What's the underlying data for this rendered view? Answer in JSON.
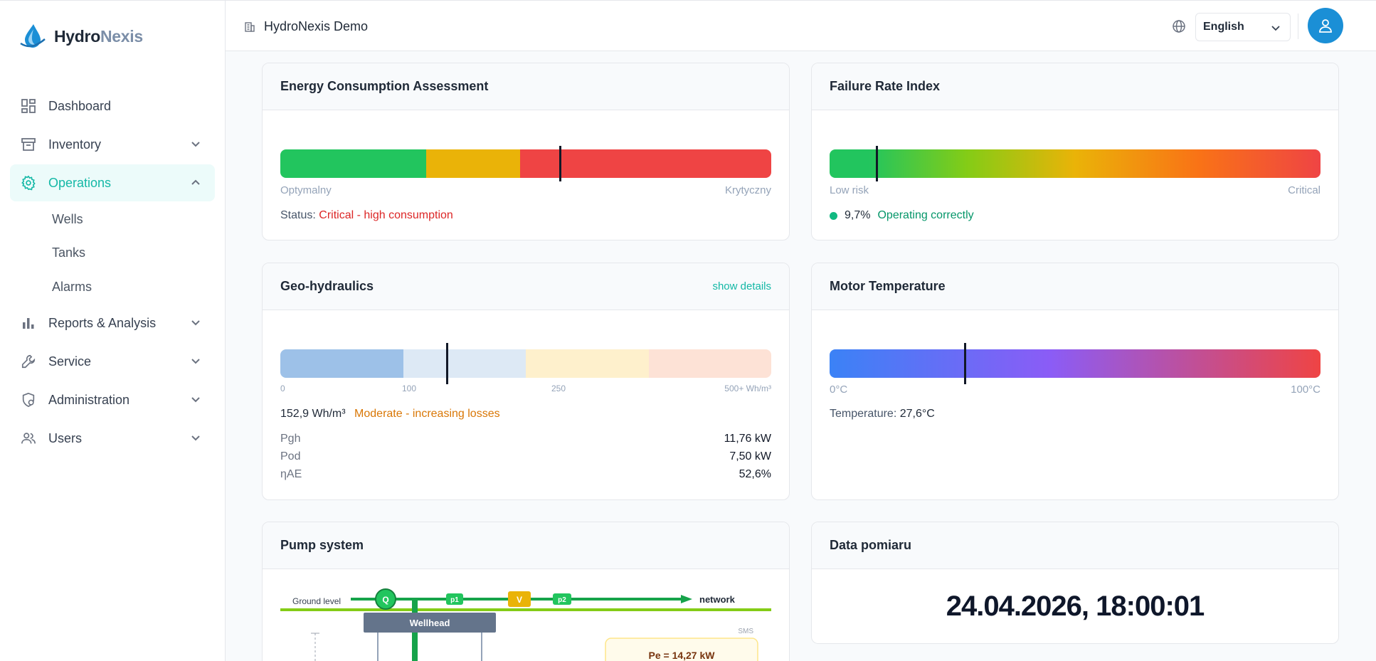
{
  "app": {
    "logo_part1": "Hydro",
    "logo_part2": "Nexis",
    "tenant": "HydroNexis Demo",
    "language": "English"
  },
  "sidebar": {
    "items": [
      {
        "label": "Dashboard",
        "icon": "dashboard-icon"
      },
      {
        "label": "Inventory",
        "icon": "archive-icon"
      },
      {
        "label": "Operations",
        "icon": "gear-icon",
        "active": true
      },
      {
        "label": "Reports & Analysis",
        "icon": "bar-chart-icon"
      },
      {
        "label": "Service",
        "icon": "wrench-icon"
      },
      {
        "label": "Administration",
        "icon": "admin-icon"
      },
      {
        "label": "Users",
        "icon": "users-icon"
      }
    ],
    "sub_items": [
      "Wells",
      "Tanks",
      "Alarms"
    ]
  },
  "energy": {
    "title": "Energy Consumption Assessment",
    "min_label": "Optymalny",
    "max_label": "Krytyczny",
    "status_prefix": "Status:",
    "status_text": "Critical - high consumption",
    "marker_fraction": 0.57,
    "colors": {
      "green": "#22c55e",
      "amber": "#eab308",
      "red": "#ef4444"
    }
  },
  "failure": {
    "title": "Failure Rate Index",
    "min_label": "Low risk",
    "max_label": "Critical",
    "value": "9,7%",
    "status_text": "Operating correctly",
    "marker_fraction": 0.097
  },
  "geo": {
    "title": "Geo-hydraulics",
    "link": "show details",
    "ticks": [
      "0",
      "100",
      "250",
      "500+ Wh/m³"
    ],
    "value": "152,9 Wh/m³",
    "status_text": "Moderate - increasing losses",
    "marker_fraction": 0.34,
    "rows": [
      {
        "label": "Pgh",
        "value": "11,76 kW"
      },
      {
        "label": "Pod",
        "value": "7,50 kW"
      },
      {
        "label": "ηAE",
        "value": "52,6%"
      }
    ]
  },
  "motor": {
    "title": "Motor Temperature",
    "min_label": "0°C",
    "max_label": "100°C",
    "status_prefix": "Temperature:",
    "value": "27,6°C",
    "marker_fraction": 0.276
  },
  "pump": {
    "title": "Pump system",
    "ground": "Ground level",
    "q": "Q",
    "p1": "p1",
    "v": "V",
    "p2": "p2",
    "network": "network",
    "wellhead": "Wellhead",
    "sms": "SMS",
    "pe": "Pe = 14,27 kW"
  },
  "measurement": {
    "title": "Data pomiaru",
    "datetime": "24.04.2026, 18:00:01"
  }
}
